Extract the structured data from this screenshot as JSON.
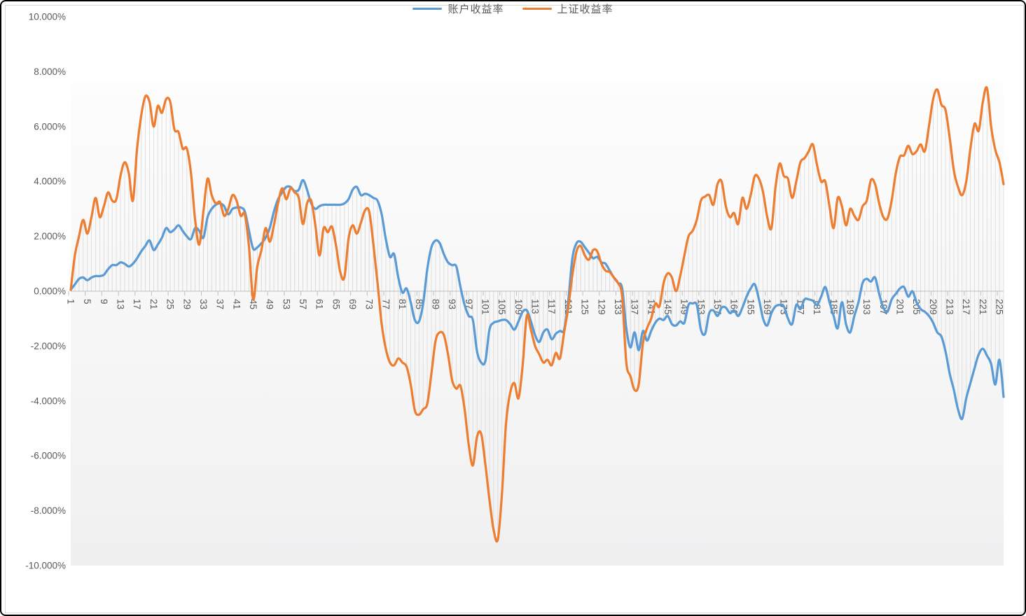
{
  "chart_data": {
    "type": "line",
    "title": "",
    "smooth": true,
    "drop_lines": true,
    "grid": "zero-axis-only",
    "legend_position": "bottom",
    "y_axis": {
      "min": -10,
      "max": 10,
      "step": 2,
      "format": "0.000%"
    },
    "x_axis": {
      "first_category": 1,
      "last_category": 226,
      "label_interval": 4
    },
    "y_tick_labels": [
      "10.000%",
      "8.000%",
      "6.000%",
      "4.000%",
      "2.000%",
      "0.000%",
      "-2.000%",
      "-4.000%",
      "-6.000%",
      "-8.000%",
      "-10.000%"
    ],
    "x_tick_labels": [
      "1",
      "5",
      "9",
      "13",
      "17",
      "21",
      "25",
      "29",
      "33",
      "37",
      "41",
      "45",
      "49",
      "53",
      "57",
      "61",
      "65",
      "69",
      "73",
      "77",
      "81",
      "85",
      "89",
      "93",
      "97",
      "101",
      "105",
      "109",
      "113",
      "117",
      "121",
      "125",
      "129",
      "133",
      "137",
      "141",
      "145",
      "149",
      "153",
      "157",
      "161",
      "165",
      "169",
      "173",
      "177",
      "181",
      "185",
      "189",
      "193",
      "197",
      "201",
      "205",
      "209",
      "213",
      "217",
      "221",
      "225"
    ],
    "series": [
      {
        "name": "账户收益率",
        "color": "#5B9BD5",
        "unit": "%",
        "values": [
          0.05,
          0.25,
          0.45,
          0.5,
          0.4,
          0.5,
          0.55,
          0.55,
          0.6,
          0.8,
          0.95,
          0.95,
          1.05,
          1.0,
          0.9,
          1.0,
          1.2,
          1.45,
          1.65,
          1.85,
          1.5,
          1.7,
          1.95,
          2.3,
          2.15,
          2.25,
          2.4,
          2.2,
          2.0,
          1.9,
          2.3,
          2.2,
          1.95,
          2.7,
          3.0,
          3.15,
          3.2,
          3.1,
          2.8,
          3.0,
          3.05,
          3.05,
          2.9,
          2.2,
          1.55,
          1.6,
          1.75,
          1.95,
          2.3,
          2.9,
          3.35,
          3.6,
          3.8,
          3.8,
          3.65,
          3.7,
          4.05,
          3.7,
          3.2,
          3.0,
          3.1,
          3.15,
          3.15,
          3.15,
          3.15,
          3.15,
          3.2,
          3.35,
          3.7,
          3.8,
          3.5,
          3.55,
          3.5,
          3.4,
          3.3,
          2.8,
          1.9,
          1.25,
          1.35,
          0.5,
          -0.05,
          0.1,
          -0.4,
          -1.05,
          -1.1,
          -0.45,
          0.8,
          1.6,
          1.85,
          1.75,
          1.35,
          1.05,
          0.95,
          0.9,
          0.15,
          -0.5,
          -0.9,
          -1.05,
          -2.2,
          -2.6,
          -2.55,
          -1.4,
          -1.15,
          -1.1,
          -1.05,
          -1.05,
          -1.2,
          -1.4,
          -1.1,
          -0.75,
          -0.7,
          -1.1,
          -1.6,
          -1.85,
          -1.5,
          -1.4,
          -1.75,
          -1.55,
          -1.45,
          -1.4,
          -0.35,
          1.2,
          1.75,
          1.8,
          1.6,
          1.4,
          1.2,
          1.25,
          1.05,
          1.0,
          0.75,
          0.5,
          0.3,
          0.1,
          -1.35,
          -2.05,
          -1.5,
          -2.15,
          -1.45,
          -1.8,
          -1.45,
          -1.15,
          -1.0,
          -1.05,
          -0.9,
          -1.2,
          -1.25,
          -1.1,
          -1.15,
          -0.5,
          -0.45,
          -0.5,
          -1.4,
          -1.55,
          -0.8,
          -0.7,
          -0.9,
          -0.6,
          -0.6,
          -0.8,
          -0.7,
          -0.9,
          -0.6,
          -0.2,
          0.1,
          0.25,
          -0.3,
          -1.0,
          -1.25,
          -0.8,
          -0.55,
          -0.5,
          -0.55,
          -1.0,
          -1.2,
          -0.5,
          -0.65,
          -0.3,
          -0.3,
          -0.35,
          -0.5,
          -0.2,
          0.15,
          -0.4,
          -0.9,
          -1.35,
          -0.4,
          -1.2,
          -1.5,
          -0.9,
          -0.4,
          0.3,
          0.45,
          0.35,
          0.5,
          -0.1,
          -0.6,
          -0.75,
          -0.3,
          -0.1,
          0.1,
          0.15,
          -0.2,
          0.0,
          -0.4,
          -0.65,
          -0.75,
          -0.9,
          -1.15,
          -1.5,
          -1.65,
          -2.2,
          -3.0,
          -3.6,
          -4.3,
          -4.65,
          -3.9,
          -3.35,
          -2.8,
          -2.3,
          -2.1,
          -2.35,
          -2.65,
          -3.4,
          -2.5,
          -3.85
        ]
      },
      {
        "name": "上证收益率",
        "color": "#ED7D31",
        "unit": "%",
        "values": [
          0.05,
          1.3,
          2.0,
          2.6,
          2.1,
          2.7,
          3.4,
          2.7,
          3.1,
          3.6,
          3.3,
          3.35,
          4.2,
          4.7,
          4.3,
          3.3,
          5.2,
          6.4,
          7.1,
          6.9,
          6.0,
          6.75,
          6.5,
          7.0,
          6.9,
          5.9,
          5.8,
          5.2,
          5.2,
          4.3,
          2.6,
          1.7,
          2.9,
          4.1,
          3.5,
          3.2,
          3.25,
          2.75,
          3.0,
          3.5,
          3.3,
          2.75,
          2.8,
          1.6,
          -0.3,
          0.9,
          1.5,
          2.3,
          1.8,
          2.4,
          3.2,
          3.75,
          3.35,
          3.75,
          3.6,
          3.4,
          2.45,
          3.2,
          3.3,
          2.4,
          1.3,
          2.3,
          2.15,
          2.35,
          1.65,
          0.7,
          0.5,
          1.9,
          2.4,
          2.1,
          2.5,
          2.95,
          2.9,
          1.7,
          0.3,
          -1.2,
          -2.1,
          -2.6,
          -2.7,
          -2.45,
          -2.6,
          -2.75,
          -3.4,
          -4.35,
          -4.5,
          -4.3,
          -4.1,
          -3.0,
          -1.8,
          -1.5,
          -1.6,
          -2.3,
          -3.25,
          -3.55,
          -3.45,
          -4.3,
          -5.6,
          -6.35,
          -5.3,
          -5.2,
          -6.3,
          -7.6,
          -8.7,
          -9.05,
          -7.4,
          -4.8,
          -3.7,
          -3.35,
          -3.9,
          -2.7,
          -0.9,
          -1.4,
          -2.0,
          -2.3,
          -2.6,
          -2.5,
          -2.7,
          -2.25,
          -2.45,
          -1.5,
          -0.6,
          0.6,
          1.45,
          1.65,
          1.3,
          1.15,
          1.5,
          1.45,
          1.0,
          0.75,
          0.7,
          0.5,
          0.3,
          -0.2,
          -2.6,
          -3.1,
          -3.6,
          -3.4,
          -1.9,
          -1.35,
          -1.0,
          -0.45,
          -0.55,
          0.3,
          0.65,
          0.5,
          0.0,
          0.55,
          1.3,
          2.0,
          2.2,
          2.6,
          3.3,
          3.45,
          3.5,
          3.15,
          3.9,
          4.0,
          3.1,
          2.7,
          2.85,
          2.45,
          3.4,
          3.0,
          3.5,
          4.2,
          4.1,
          3.6,
          2.7,
          2.3,
          3.8,
          4.65,
          4.2,
          4.1,
          3.4,
          4.0,
          4.7,
          4.85,
          5.1,
          5.35,
          4.6,
          4.0,
          4.0,
          3.1,
          2.3,
          3.4,
          3.1,
          2.4,
          3.0,
          2.75,
          2.6,
          3.1,
          3.3,
          4.05,
          3.9,
          3.2,
          2.7,
          2.65,
          3.3,
          4.3,
          4.9,
          4.95,
          5.3,
          5.0,
          5.1,
          5.35,
          5.1,
          6.0,
          7.0,
          7.35,
          6.8,
          6.6,
          5.6,
          4.4,
          3.8,
          3.5,
          4.0,
          5.2,
          6.1,
          5.85,
          6.9,
          7.4,
          6.0,
          5.15,
          4.7,
          3.9
        ]
      }
    ],
    "colors": {
      "axis_line": "#BFBFBF",
      "tick": "#BFBFBF",
      "drop_line": "#D9D9D9",
      "label_text": "#595959",
      "plot_fill_top": "#FDFDFD",
      "plot_fill_bottom": "#F0F0F1"
    }
  },
  "legend": {
    "items": [
      {
        "label": "账户收益率",
        "color": "#5B9BD5"
      },
      {
        "label": "上证收益率",
        "color": "#ED7D31"
      }
    ]
  }
}
